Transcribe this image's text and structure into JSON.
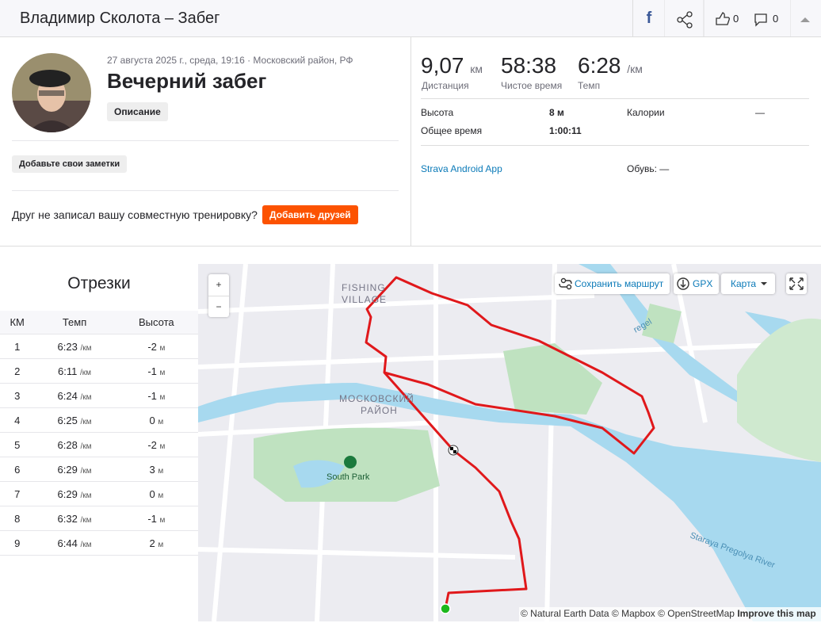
{
  "header": {
    "title": "Владимир Сколота – Забег",
    "facebook": "f",
    "likes": 0,
    "comments": 0
  },
  "activity": {
    "meta": "27 августа 2025 г., среда, 19:16 · Московский район, РФ",
    "name": "Вечерний забег",
    "description_button": "Описание",
    "notes_button": "Добавьте свои заметки",
    "friends_prompt": "Друг не записал вашу совместную тренировку?",
    "friends_button": "Добавить друзей"
  },
  "stats": {
    "distance": {
      "value": "9,07",
      "unit": "км",
      "label": "Дистанция"
    },
    "moving_time": {
      "value": "58:38",
      "label": "Чистое время"
    },
    "pace": {
      "value": "6:28",
      "unit": "/км",
      "label": "Темп"
    },
    "elevation": {
      "label": "Высота",
      "value": "8 м"
    },
    "elapsed_time": {
      "label": "Общее время",
      "value": "1:00:11"
    },
    "calories": {
      "label": "Калории",
      "value": "—"
    },
    "device": "Strava Android App",
    "shoes": "Обувь: —"
  },
  "splits": {
    "title": "Отрезки",
    "columns": [
      "КМ",
      "Темп",
      "Высота"
    ],
    "pace_unit": "/км",
    "elev_unit": "м",
    "rows": [
      [
        1,
        "6:23",
        -2
      ],
      [
        2,
        "6:11",
        -1
      ],
      [
        3,
        "6:24",
        -1
      ],
      [
        4,
        "6:25",
        0
      ],
      [
        5,
        "6:28",
        -2
      ],
      [
        6,
        "6:29",
        3
      ],
      [
        7,
        "6:29",
        0
      ],
      [
        8,
        "6:32",
        -1
      ],
      [
        9,
        "6:44",
        2
      ]
    ]
  },
  "map": {
    "zoom_in": "+",
    "zoom_out": "−",
    "save_route": "Сохранить маршрут",
    "gpx": "GPX",
    "map_type": "Карта",
    "labels": {
      "fishing": "FISHING",
      "village": "VILLAGE",
      "district1": "МОСКОВСКИЙ",
      "district2": "РАЙОН",
      "park": "South Park",
      "river": "Staraya Pregolya River",
      "pregel": "regel"
    },
    "attribution": "© Natural Earth Data © Mapbox © OpenStreetMap",
    "improve": "Improve this map"
  }
}
